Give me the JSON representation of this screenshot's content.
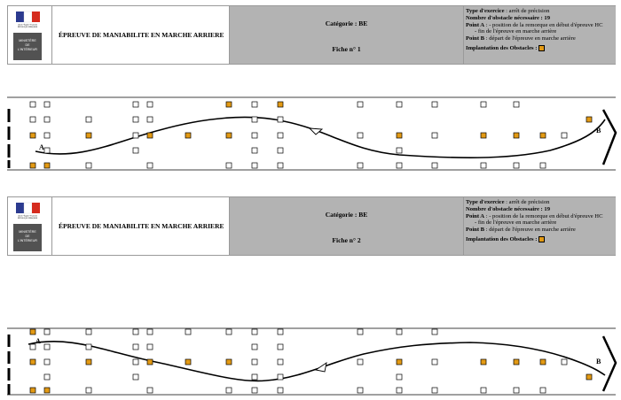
{
  "colors": {
    "obstacle_highlight": "#e39a14",
    "panel": "#b3b3b3"
  },
  "logo": {
    "small_text_line1": "Liberté • Égalité • Fraternité",
    "small_text_line2": "RÉPUBLIQUE FRANÇAISE",
    "ministry_lines": [
      "MINISTÈRE",
      "DE",
      "L'INTÉRIEUR"
    ]
  },
  "sheets": [
    {
      "title": "ÉPREUVE DE MANIABILITE EN MARCHE ARRIERE",
      "category": "Catégorie : BE",
      "fiche": "Fiche n° 1",
      "info": {
        "type_label": "Type d'exercice",
        "type_value": " : arrêt de précision",
        "count_label": "Nombre d'obstacle nécessaire : 19",
        "pointA_label": "Point A",
        "pointA_value": " : - position de la remorque en début d'épreuve HC",
        "pointA_extra": "- fin de l'épreuve en marche arrière",
        "pointB_label": "Point B",
        "pointB_value": " : départ de l'épreuve en marche arrière",
        "legend_label": "Implantation des Obstacles :"
      },
      "course": {
        "label_a": "A",
        "label_b": "B"
      }
    },
    {
      "title": "ÉPREUVE DE MANIABILITE EN MARCHE ARRIERE",
      "category": "Catégorie : BE",
      "fiche": "Fiche n° 2",
      "info": {
        "type_label": "Type d'exercice",
        "type_value": " : arrêt de précision",
        "count_label": "Nombre d'obstacle nécessaire : 19",
        "pointA_label": "Point A",
        "pointA_value": " : - position de la remorque en début d'épreuve HC",
        "pointA_extra": "- fin de l'épreuve en marche arrière",
        "pointB_label": "Point B",
        "pointB_value": " : départ de l'épreuve en marche arrière",
        "legend_label": "Implantation des Obstacles :"
      },
      "course": {
        "label_a": "A",
        "label_b": "B"
      }
    }
  ]
}
